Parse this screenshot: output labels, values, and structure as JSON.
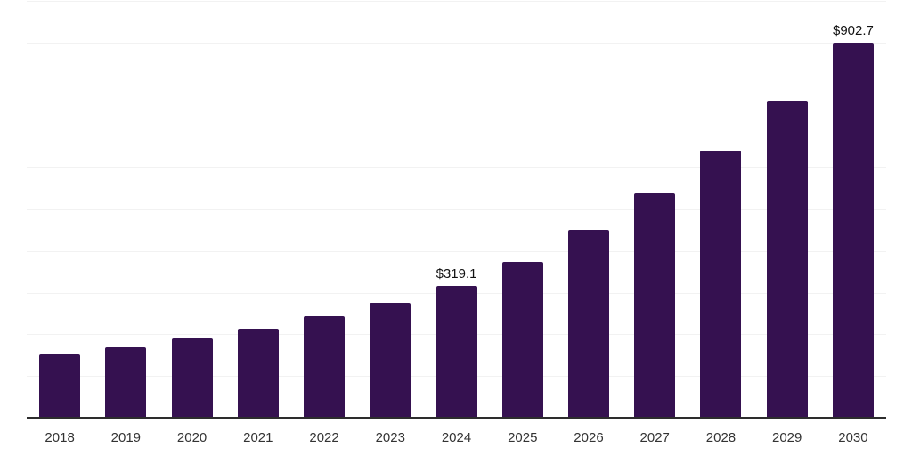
{
  "chart_data": {
    "type": "bar",
    "title": "",
    "xlabel": "",
    "ylabel": "",
    "categories": [
      "2018",
      "2019",
      "2020",
      "2021",
      "2022",
      "2023",
      "2024",
      "2025",
      "2026",
      "2027",
      "2028",
      "2029",
      "2030"
    ],
    "values": [
      153.7,
      170.8,
      192.2,
      216.6,
      245.7,
      277.5,
      319.1,
      377.0,
      452.5,
      540.8,
      643.0,
      762.4,
      902.7
    ],
    "data_labels": {
      "2024": "$319.1",
      "2030": "$902.7"
    },
    "ylim": [
      0,
      1000
    ],
    "gridline_step": 100,
    "grid": true,
    "legend": false,
    "bar_color": "#351150",
    "gridline_color": "#f2f2f2",
    "axis_line_color": "#2d2d2d",
    "tick_label_color": "#333333",
    "data_label_color": "#111111"
  }
}
